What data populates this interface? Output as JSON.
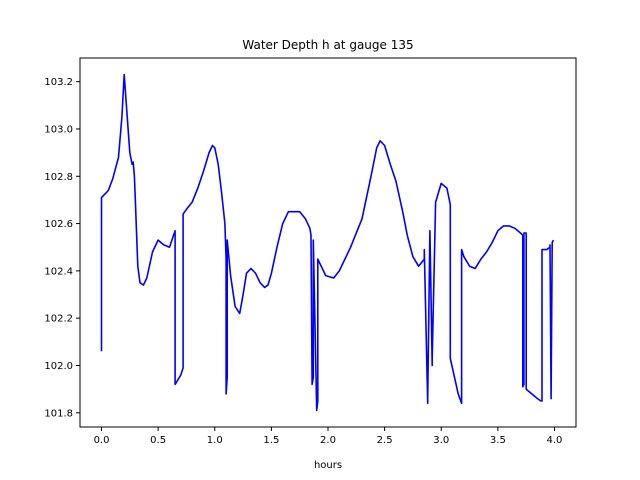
{
  "chart_data": {
    "type": "line",
    "title": "Water Depth h at gauge 135",
    "xlabel": "hours",
    "ylabel": "",
    "xlim": [
      -0.19,
      4.19
    ],
    "ylim": [
      101.74,
      103.3
    ],
    "xticks": [
      0.0,
      0.5,
      1.0,
      1.5,
      2.0,
      2.5,
      3.0,
      3.5,
      4.0
    ],
    "xtick_labels": [
      "0.0",
      "0.5",
      "1.0",
      "1.5",
      "2.0",
      "2.5",
      "3.0",
      "3.5",
      "4.0"
    ],
    "yticks": [
      101.8,
      102.0,
      102.2,
      102.4,
      102.6,
      102.8,
      103.0,
      103.2
    ],
    "ytick_labels": [
      "101.8",
      "102.0",
      "102.2",
      "102.4",
      "102.6",
      "102.8",
      "103.0",
      "103.2"
    ],
    "grid": false,
    "series": [
      {
        "name": "",
        "color": "#0000ff",
        "x": [
          0.0,
          0.0,
          0.02,
          0.06,
          0.1,
          0.15,
          0.18,
          0.2,
          0.22,
          0.25,
          0.27,
          0.28,
          0.29,
          0.3,
          0.32,
          0.34,
          0.37,
          0.4,
          0.45,
          0.5,
          0.55,
          0.6,
          0.65,
          0.65,
          0.7,
          0.72,
          0.72,
          0.75,
          0.8,
          0.85,
          0.9,
          0.95,
          0.98,
          1.0,
          1.03,
          1.06,
          1.09,
          1.1,
          1.1,
          1.11,
          1.11,
          1.14,
          1.18,
          1.22,
          1.25,
          1.28,
          1.32,
          1.36,
          1.4,
          1.44,
          1.47,
          1.5,
          1.55,
          1.6,
          1.65,
          1.7,
          1.75,
          1.8,
          1.84,
          1.85,
          1.86,
          1.87,
          1.87,
          1.9,
          1.91,
          1.91,
          1.94,
          1.98,
          2.05,
          2.1,
          2.2,
          2.3,
          2.38,
          2.43,
          2.46,
          2.5,
          2.55,
          2.6,
          2.66,
          2.7,
          2.75,
          2.8,
          2.85,
          2.85,
          2.88,
          2.88,
          2.9,
          2.92,
          2.92,
          2.95,
          3.0,
          3.05,
          3.08,
          3.08,
          3.15,
          3.18,
          3.18,
          3.2,
          3.25,
          3.3,
          3.35,
          3.4,
          3.45,
          3.5,
          3.55,
          3.6,
          3.65,
          3.7,
          3.72,
          3.72,
          3.73,
          3.73,
          3.75,
          3.75,
          3.8,
          3.85,
          3.88,
          3.89,
          3.89,
          3.93,
          3.96,
          3.96,
          3.97,
          3.97,
          3.98,
          3.99
        ],
        "y": [
          102.06,
          102.71,
          102.72,
          102.74,
          102.79,
          102.88,
          103.05,
          103.23,
          103.1,
          102.9,
          102.85,
          102.86,
          102.8,
          102.68,
          102.42,
          102.35,
          102.34,
          102.37,
          102.48,
          102.53,
          102.51,
          102.5,
          102.57,
          101.92,
          101.96,
          101.99,
          102.64,
          102.66,
          102.69,
          102.75,
          102.82,
          102.9,
          102.93,
          102.92,
          102.85,
          102.73,
          102.6,
          102.45,
          101.88,
          101.95,
          102.53,
          102.38,
          102.25,
          102.22,
          102.3,
          102.39,
          102.41,
          102.39,
          102.35,
          102.33,
          102.34,
          102.39,
          102.5,
          102.6,
          102.65,
          102.65,
          102.65,
          102.62,
          102.58,
          102.55,
          101.92,
          101.95,
          102.53,
          101.81,
          101.85,
          102.45,
          102.42,
          102.38,
          102.37,
          102.4,
          102.5,
          102.62,
          102.8,
          102.92,
          102.95,
          102.93,
          102.85,
          102.78,
          102.65,
          102.55,
          102.46,
          102.42,
          102.45,
          102.49,
          101.84,
          101.86,
          102.57,
          102.0,
          102.03,
          102.69,
          102.77,
          102.75,
          102.68,
          102.03,
          101.88,
          101.84,
          102.49,
          102.46,
          102.42,
          102.41,
          102.45,
          102.48,
          102.52,
          102.57,
          102.59,
          102.59,
          102.58,
          102.56,
          102.55,
          101.91,
          101.92,
          102.56,
          102.56,
          101.9,
          101.88,
          101.86,
          101.85,
          101.85,
          102.49,
          102.49,
          102.5,
          102.51,
          101.86,
          101.87,
          102.52,
          102.53
        ]
      }
    ]
  }
}
